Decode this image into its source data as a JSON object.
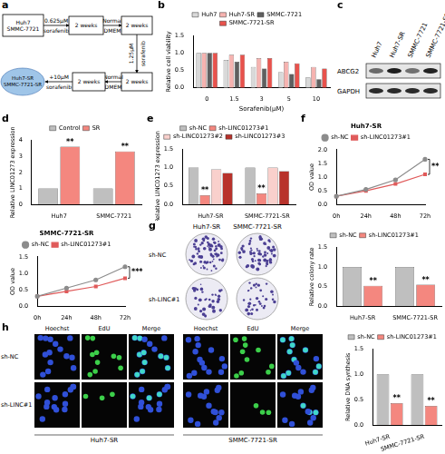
{
  "panel_labels": [
    "a",
    "b",
    "c",
    "d",
    "e",
    "f",
    "g",
    "h"
  ],
  "diagram": {
    "start": [
      "Huh7",
      "SMMC-7721"
    ],
    "boxes": [
      "2 weeks",
      "2 weeks",
      "2 weeks",
      "2 weeks"
    ],
    "arrows": [
      "0.625μM sorafenib",
      "Normal DMEM",
      "1.25μM sorafenib",
      "Normal DMEM",
      "+10μM sorafenib"
    ],
    "end": [
      "Huh7-SR",
      "SMMC-7721-SR"
    ]
  },
  "blot": {
    "lanes": [
      "Huh7",
      "Huh7-SR",
      "SMMC-7721",
      "SMMC-7721-SR"
    ],
    "rows": [
      "ABCG2",
      "GAPDH"
    ]
  },
  "colony_image": {
    "columns": [
      "Huh7-SR",
      "SMMC-7721-SR"
    ],
    "rows": [
      "sh-NC",
      "sh-LINC#1"
    ]
  },
  "edu_image": {
    "channels": [
      "Hoechst",
      "EdU",
      "Merge"
    ],
    "rows": [
      "sh-NC",
      "sh-LINC#1"
    ],
    "groups": [
      "Huh7-SR",
      "SMMC-7721-SR"
    ]
  },
  "chart_data": [
    {
      "type": "bar",
      "y_label": "Relative cell viability",
      "x_label": "Sorafenib(μM)",
      "categories": [
        "0",
        "1.5",
        "3",
        "5",
        "10"
      ],
      "series": [
        {
          "name": "Huh7",
          "color": "#d9d9d9",
          "values": [
            1.0,
            0.8,
            0.6,
            0.45,
            0.3
          ]
        },
        {
          "name": "Huh7-SR",
          "color": "#f6b3b0",
          "values": [
            1.0,
            0.95,
            0.85,
            0.75,
            0.6
          ]
        },
        {
          "name": "SMMC-7721",
          "color": "#5f5f5f",
          "values": [
            1.0,
            0.75,
            0.55,
            0.4,
            0.25
          ]
        },
        {
          "name": "SMMC-7721-SR",
          "color": "#e8524c",
          "values": [
            1.0,
            0.95,
            0.85,
            0.7,
            0.55
          ]
        }
      ],
      "ylim": [
        0,
        1.5
      ],
      "yticks": [
        {
          "value": 0,
          "label": "0.0"
        },
        0.5,
        {
          "value": 1,
          "label": "1.0"
        },
        1.5
      ],
      "grid": false,
      "legend": "top"
    },
    {
      "type": "bar",
      "y_label": "Relative LINC01273 expression",
      "categories": [
        "Huh7",
        "SMMC-7721"
      ],
      "series": [
        {
          "name": "Control",
          "color": "#bfbfbf",
          "values": [
            1.0,
            1.0
          ]
        },
        {
          "name": "SR",
          "color": "#f4877f",
          "values": [
            3.6,
            3.3
          ]
        }
      ],
      "ylim": [
        0,
        4
      ],
      "yticks": [
        0,
        1,
        2,
        3,
        4
      ],
      "grid": false,
      "legend": "top",
      "annotations": [
        {
          "text": "**",
          "category": "Huh7",
          "series": "SR"
        },
        {
          "text": "**",
          "category": "SMMC-7721",
          "series": "SR"
        }
      ]
    },
    {
      "type": "bar",
      "y_label": "Relative LINC01273 expression",
      "categories": [
        "Huh7-SR",
        "SMMC-7721-SR"
      ],
      "series": [
        {
          "name": "sh-NC",
          "color": "#bfbfbf",
          "values": [
            1.0,
            1.0
          ]
        },
        {
          "name": "sh-LINC01273#1",
          "color": "#f4877f",
          "values": [
            0.25,
            0.3
          ]
        },
        {
          "name": "sh-LINC01273#2",
          "color": "#f9d0cc",
          "values": [
            0.95,
            1.0
          ]
        },
        {
          "name": "sh-LINC01273#3",
          "color": "#b8322b",
          "values": [
            0.85,
            0.9
          ]
        }
      ],
      "ylim": [
        0,
        1.5
      ],
      "yticks": [
        {
          "value": 0,
          "label": "0.0"
        },
        0.5,
        {
          "value": 1,
          "label": "1.0"
        },
        1.5
      ],
      "grid": false,
      "legend": "top",
      "annotations": [
        {
          "text": "**",
          "category": "Huh7-SR",
          "series": "sh-LINC01273#1"
        },
        {
          "text": "**",
          "category": "SMMC-7721-SR",
          "series": "sh-LINC01273#1"
        }
      ]
    },
    {
      "type": "line",
      "title": "Huh7-SR",
      "y_label": "OD value",
      "categories": [
        "0h",
        "24h",
        "48h",
        "72h"
      ],
      "series": [
        {
          "name": "sh-NC",
          "color": "#8c8c8c",
          "marker": "circle",
          "values": [
            0.3,
            0.55,
            0.9,
            1.65
          ]
        },
        {
          "name": "sh-LINC01273#1",
          "color": "#e05a5a",
          "marker": "rect",
          "values": [
            0.3,
            0.5,
            0.75,
            1.1
          ]
        }
      ],
      "ylim": [
        0,
        2
      ],
      "yticks": [
        {
          "value": 0,
          "label": "0.0"
        },
        0.5,
        {
          "value": 1,
          "label": "1.0"
        },
        1.5,
        {
          "value": 2,
          "label": "2.0"
        }
      ],
      "grid": false,
      "legend": "top",
      "annotations": [
        {
          "text": "**",
          "x": "72h"
        }
      ]
    },
    {
      "type": "line",
      "title": "SMMC-7721-SR",
      "y_label": "OD value",
      "categories": [
        "0h",
        "24h",
        "48h",
        "72h"
      ],
      "series": [
        {
          "name": "sh-NC",
          "color": "#8c8c8c",
          "marker": "circle",
          "values": [
            0.3,
            0.55,
            0.8,
            1.2
          ]
        },
        {
          "name": "sh-LINC01273#1",
          "color": "#e05a5a",
          "marker": "rect",
          "values": [
            0.3,
            0.45,
            0.6,
            0.85
          ]
        }
      ],
      "ylim": [
        0,
        1.5
      ],
      "yticks": [
        {
          "value": 0,
          "label": "0.0"
        },
        0.5,
        {
          "value": 1,
          "label": "1.0"
        },
        1.5
      ],
      "grid": false,
      "legend": "top",
      "annotations": [
        {
          "text": "***",
          "x": "72h"
        }
      ]
    },
    {
      "type": "bar",
      "y_label": "Relative colony rate",
      "categories": [
        "Huh7-SR",
        "SMMC-7721-SR"
      ],
      "series": [
        {
          "name": "sh-NC",
          "color": "#bfbfbf",
          "values": [
            1.0,
            1.0
          ]
        },
        {
          "name": "sh-LINC01273#1",
          "color": "#f4877f",
          "values": [
            0.52,
            0.55
          ]
        }
      ],
      "ylim": [
        0,
        1.5
      ],
      "yticks": [
        {
          "value": 0,
          "label": "0.0"
        },
        0.5,
        {
          "value": 1,
          "label": "1.0"
        },
        1.5
      ],
      "grid": false,
      "legend": "top",
      "annotations": [
        {
          "text": "**",
          "category": "Huh7-SR",
          "series": "sh-LINC01273#1"
        },
        {
          "text": "**",
          "category": "SMMC-7721-SR",
          "series": "sh-LINC01273#1"
        }
      ]
    },
    {
      "type": "bar",
      "y_label": "Relative DNA synthesis",
      "categories": [
        "Huh7-SR",
        "SMMC-7721-SR"
      ],
      "series": [
        {
          "name": "sh-NC",
          "color": "#bfbfbf",
          "values": [
            1.0,
            1.0
          ]
        },
        {
          "name": "sh-LINC01273#1",
          "color": "#f4877f",
          "values": [
            0.43,
            0.38
          ]
        }
      ],
      "ylim": [
        0,
        1.5
      ],
      "yticks": [
        {
          "value": 0,
          "label": "0.0"
        },
        0.5,
        {
          "value": 1,
          "label": "1.0"
        },
        1.5
      ],
      "grid": false,
      "legend": "top",
      "annotations": [
        {
          "text": "**",
          "category": "Huh7-SR",
          "series": "sh-LINC01273#1"
        },
        {
          "text": "**",
          "category": "SMMC-7721-SR",
          "series": "sh-LINC01273#1"
        }
      ]
    }
  ]
}
